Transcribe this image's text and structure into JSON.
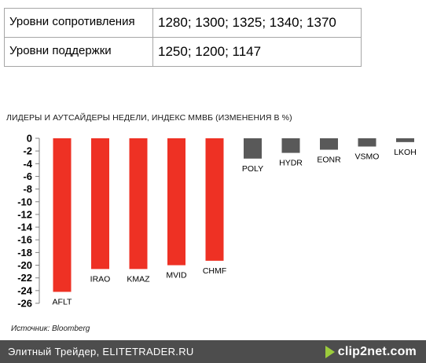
{
  "levels": {
    "resistance": {
      "label": "Уровни сопротивления",
      "value": "1280; 1300; 1325; 1340; 1370"
    },
    "support": {
      "label": "Уровни поддержки",
      "value": "1250; 1200; 1147"
    }
  },
  "source": "Источник: Bloomberg",
  "footer": {
    "text": "Элитный Трейдер, ELITETRADER.RU",
    "logo_text": "clip2net.com",
    "logo_icon": "play-arrow-icon"
  },
  "chart_data": {
    "type": "bar",
    "title": "ЛИДЕРЫ И АУТСАЙДЕРЫ НЕДЕЛИ, ИНДЕКС ММВБ (ИЗМЕНЕНИЯ В %)",
    "categories": [
      "AFLT",
      "IRAO",
      "KMAZ",
      "MVID",
      "CHMF",
      "POLY",
      "HYDR",
      "EONR",
      "VSMO",
      "LKOH"
    ],
    "values": [
      -24.2,
      -20.6,
      -20.6,
      -20.0,
      -19.3,
      -3.2,
      -2.3,
      -1.8,
      -1.3,
      -0.6
    ],
    "colors": [
      "#ee3124",
      "#ee3124",
      "#ee3124",
      "#ee3124",
      "#ee3124",
      "#595959",
      "#595959",
      "#595959",
      "#595959",
      "#595959"
    ],
    "ylim": [
      -26,
      0
    ],
    "yticks": [
      0,
      -2,
      -4,
      -6,
      -8,
      -10,
      -12,
      -14,
      -16,
      -18,
      -20,
      -22,
      -24,
      -26
    ],
    "xlabel": "",
    "ylabel": "",
    "grid": false,
    "legend": "none"
  }
}
